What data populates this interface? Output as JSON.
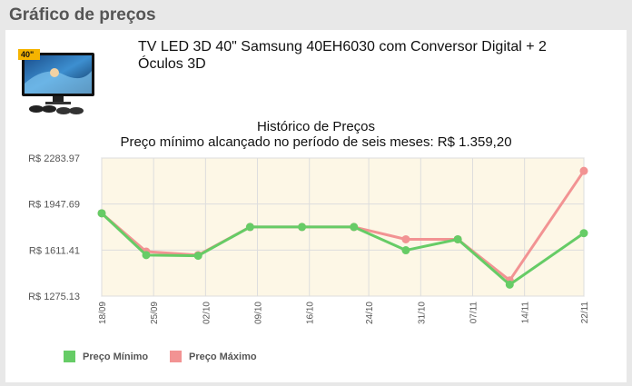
{
  "section": {
    "title": "Gráfico de preços"
  },
  "product": {
    "title": "TV LED 3D 40\" Samsung 40EH6030 com Conversor Digital + 2 Óculos 3D",
    "thumbnail_badge": "40\"",
    "thumbnail_icon": "tv-with-3d-glasses-icon"
  },
  "colors": {
    "min_series": "#66cc66",
    "max_series": "#f29393",
    "plot_bg": "#fdf7e6",
    "grid": "#dddddd"
  },
  "chart_data": {
    "type": "line",
    "title": "Histórico de Preços",
    "subtitle": "Preço mínimo alcançado no período de seis meses: R$ 1.359,20",
    "x": [
      "18/09",
      "25/09",
      "02/10",
      "09/10",
      "16/10",
      "24/10",
      "31/10",
      "07/11",
      "14/11",
      "22/11"
    ],
    "y_ticks": [
      "R$ 2283.97",
      "R$ 1947.69",
      "R$ 1611.41",
      "R$ 1275.13"
    ],
    "y_tick_values": [
      2283.97,
      1947.69,
      1611.41,
      1275.13
    ],
    "ylim": [
      1275.13,
      2283.97
    ],
    "grid": true,
    "legend_position": "bottom-left",
    "series": [
      {
        "name": "Preço Mínimo",
        "points": [
          [
            "18/09",
            1880
          ],
          [
            "24/09",
            1575
          ],
          [
            "01/10",
            1570
          ],
          [
            "08/10",
            1780
          ],
          [
            "15/10",
            1780
          ],
          [
            "22/10",
            1780
          ],
          [
            "29/10",
            1610
          ],
          [
            "05/11",
            1690
          ],
          [
            "12/11",
            1359.2
          ],
          [
            "22/11",
            1735
          ]
        ]
      },
      {
        "name": "Preço Máximo",
        "points": [
          [
            "18/09",
            1880
          ],
          [
            "24/09",
            1600
          ],
          [
            "01/10",
            1575
          ],
          [
            "08/10",
            1780
          ],
          [
            "15/10",
            1780
          ],
          [
            "22/10",
            1780
          ],
          [
            "29/10",
            1690
          ],
          [
            "05/11",
            1690
          ],
          [
            "12/11",
            1390
          ],
          [
            "22/11",
            2190
          ]
        ]
      }
    ]
  }
}
